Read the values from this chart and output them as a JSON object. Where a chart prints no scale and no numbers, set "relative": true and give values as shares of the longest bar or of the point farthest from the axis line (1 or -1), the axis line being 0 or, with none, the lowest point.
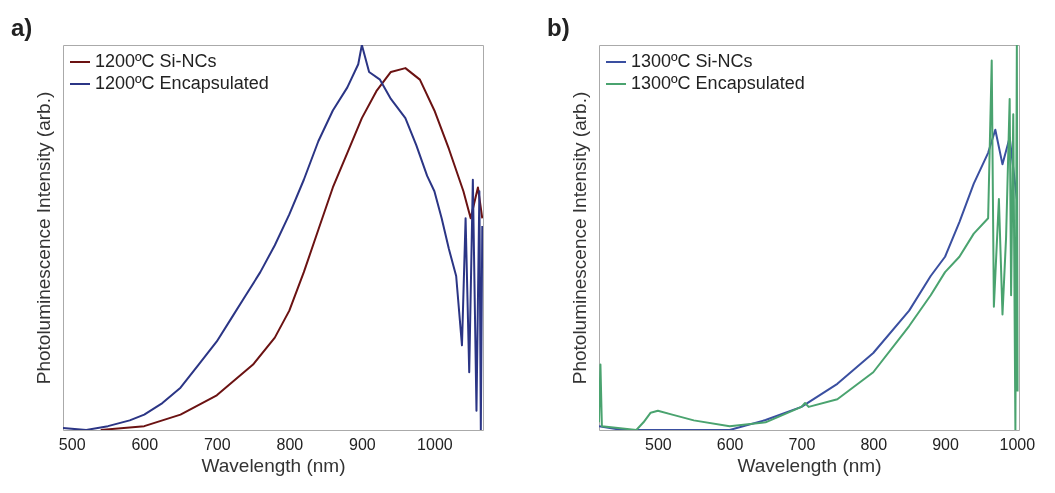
{
  "chart_data": [
    {
      "type": "line",
      "title": "a)",
      "xlabel": "Wavelength (nm)",
      "ylabel": "Photoluminescence Intensity (arb.)",
      "relative": true,
      "legend": "top left",
      "xlim": [
        488,
        1067
      ],
      "xticks": [
        500,
        600,
        700,
        800,
        900,
        1000
      ],
      "series": [
        {
          "name": "1200ºC Si-NCs",
          "color": "#6b1212",
          "x": [
            540,
            600,
            650,
            700,
            750,
            780,
            800,
            820,
            840,
            860,
            880,
            900,
            920,
            940,
            960,
            980,
            1000,
            1020,
            1040,
            1050,
            1060,
            1066
          ],
          "values": [
            0,
            0.01,
            0.04,
            0.09,
            0.17,
            0.24,
            0.31,
            0.41,
            0.52,
            0.63,
            0.72,
            0.81,
            0.88,
            0.93,
            0.94,
            0.91,
            0.83,
            0.73,
            0.62,
            0.55,
            0.63,
            0.55
          ]
        },
        {
          "name": "1200ºC Encapsulated",
          "color": "#2b3585",
          "x": [
            488,
            520,
            550,
            580,
            600,
            625,
            650,
            675,
            700,
            720,
            740,
            760,
            780,
            800,
            820,
            840,
            860,
            880,
            895,
            900,
            910,
            925,
            940,
            960,
            975,
            990,
            1000,
            1010,
            1020,
            1030,
            1038,
            1043,
            1048,
            1053,
            1058,
            1062,
            1064,
            1066
          ],
          "values": [
            0.005,
            0,
            0.01,
            0.025,
            0.04,
            0.07,
            0.11,
            0.17,
            0.23,
            0.29,
            0.35,
            0.41,
            0.48,
            0.56,
            0.65,
            0.75,
            0.83,
            0.89,
            0.95,
            1,
            0.93,
            0.91,
            0.86,
            0.81,
            0.74,
            0.66,
            0.62,
            0.55,
            0.47,
            0.4,
            0.22,
            0.55,
            0.15,
            0.65,
            0.05,
            0.62,
            0,
            0.53
          ]
        }
      ]
    },
    {
      "type": "line",
      "title": "b)",
      "xlabel": "Wavelength (nm)",
      "ylabel": "Photoluminescence Intensity (arb.)",
      "relative": true,
      "legend": "top left",
      "xlim": [
        418,
        1003
      ],
      "xticks": [
        500,
        600,
        700,
        800,
        900,
        1000
      ],
      "series": [
        {
          "name": "1300ºC Si-NCs",
          "color": "#3a4fa0",
          "x": [
            418,
            450,
            500,
            550,
            600,
            650,
            700,
            750,
            800,
            850,
            880,
            900,
            920,
            940,
            960,
            970,
            980,
            990,
            1000
          ],
          "values": [
            0.01,
            0,
            0,
            0,
            0,
            0.026,
            0.06,
            0.12,
            0.2,
            0.31,
            0.4,
            0.45,
            0.54,
            0.64,
            0.72,
            0.78,
            0.69,
            0.76,
            0.6
          ]
        },
        {
          "name": "1300ºC Encapsulated",
          "color": "#4aa36f",
          "x": [
            418,
            420,
            422,
            470,
            480,
            490,
            500,
            520,
            550,
            600,
            650,
            700,
            705,
            710,
            750,
            800,
            850,
            880,
            900,
            920,
            940,
            960,
            965,
            968,
            975,
            980,
            985,
            990,
            992,
            995,
            998,
            1000,
            1001
          ],
          "values": [
            0.02,
            0.17,
            0.01,
            0,
            0.02,
            0.045,
            0.05,
            0.04,
            0.025,
            0.01,
            0.02,
            0.06,
            0.07,
            0.06,
            0.08,
            0.15,
            0.27,
            0.35,
            0.41,
            0.45,
            0.51,
            0.55,
            0.96,
            0.32,
            0.6,
            0.3,
            0.5,
            0.86,
            0.35,
            0.82,
            0,
            1,
            0.1
          ]
        }
      ]
    }
  ]
}
